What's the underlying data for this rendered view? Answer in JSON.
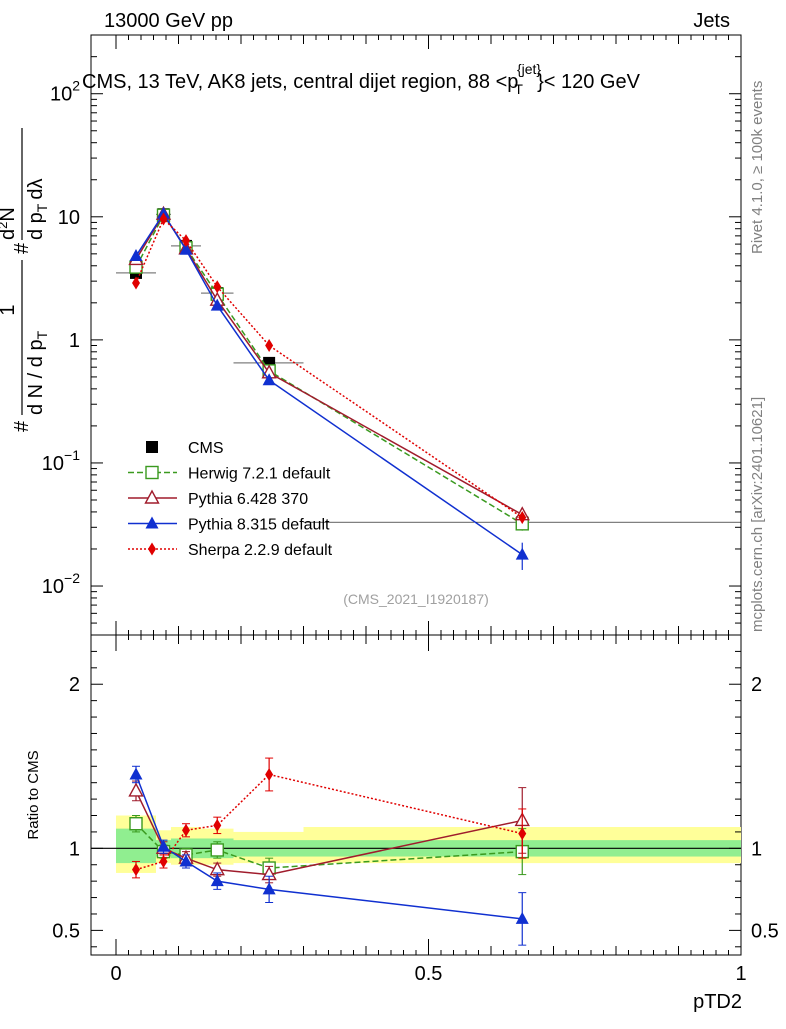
{
  "header": {
    "energy_label": "13000 GeV pp",
    "category_label": "Jets"
  },
  "side_labels": {
    "rivet": "Rivet 4.1.0, ≥ 100k events",
    "source": "mcplots.cern.ch [arXiv:2401.10621]"
  },
  "chart_data": [
    {
      "type": "line",
      "panel": "main",
      "title": "CMS, 13 TeV, AK8 jets, central dijet region, 88 <p",
      "title_super": "{jet}",
      "title_sub": "T",
      "title_end": "}< 120 GeV",
      "watermark": "(CMS_2021_I1920187)",
      "yscale": "log",
      "ylim": [
        0.004,
        300
      ],
      "xlim": [
        -0.04,
        1.0
      ],
      "ylabel_parts": [
        "1",
        "d N / d p",
        "T",
        "#",
        "d",
        "2",
        "N",
        "d p",
        "T",
        "dλ",
        "#"
      ],
      "y_ticks": [
        {
          "value": 0.01,
          "label": "10",
          "exp": "−2"
        },
        {
          "value": 0.1,
          "label": "10",
          "exp": "−1"
        },
        {
          "value": 1,
          "label": "1",
          "exp": ""
        },
        {
          "value": 10,
          "label": "10",
          "exp": ""
        },
        {
          "value": 100,
          "label": "10",
          "exp": "2"
        }
      ],
      "x": [
        0.032,
        0.076,
        0.112,
        0.162,
        0.245,
        0.65
      ],
      "series": [
        {
          "name": "CMS",
          "color": "#000000",
          "marker": "square",
          "dash": "none",
          "values": [
            3.5,
            10.5,
            5.8,
            2.4,
            0.65,
            0.033
          ],
          "bins": [
            [
              0.0,
              0.064
            ],
            [
              0.064,
              0.088
            ],
            [
              0.088,
              0.136
            ],
            [
              0.136,
              0.188
            ],
            [
              0.188,
              0.3
            ],
            [
              0.3,
              1.0
            ]
          ]
        },
        {
          "name": "Herwig 7.2.1 default",
          "color": "#3a9a1f",
          "marker": "open-square",
          "dash": "6,3",
          "values": [
            3.9,
            10.3,
            5.6,
            2.35,
            0.56,
            0.032
          ],
          "err": [
            0.06,
            0.05,
            0.05,
            0.05,
            0.06,
            0.12
          ]
        },
        {
          "name": "Pythia 6.428 370",
          "color": "#a01c2c",
          "marker": "open-triangle",
          "dash": "none",
          "values": [
            4.5,
            10.5,
            5.5,
            2.1,
            0.54,
            0.038
          ],
          "err": [
            0.05,
            0.04,
            0.04,
            0.04,
            0.05,
            0.12
          ]
        },
        {
          "name": "Pythia 8.315 default",
          "color": "#1030d0",
          "marker": "triangle",
          "dash": "none",
          "values": [
            4.8,
            10.6,
            5.4,
            1.9,
            0.47,
            0.018
          ],
          "err": [
            0.05,
            0.04,
            0.04,
            0.05,
            0.06,
            0.25
          ]
        },
        {
          "name": "Sherpa 2.2.9 default",
          "color": "#e00000",
          "marker": "diamond",
          "dash": "2,2",
          "values": [
            2.9,
            9.6,
            6.4,
            2.7,
            0.9,
            0.036
          ],
          "err": [
            0.05,
            0.04,
            0.04,
            0.04,
            0.05,
            0.1
          ]
        }
      ]
    },
    {
      "type": "line",
      "panel": "ratio",
      "ylabel": "Ratio to CMS",
      "xlabel": "pTD2",
      "xlim": [
        -0.04,
        1.0
      ],
      "ylim": [
        0.35,
        2.3
      ],
      "y_ticks": [
        {
          "value": 0.5,
          "label": "0.5"
        },
        {
          "value": 1,
          "label": "1"
        },
        {
          "value": 2,
          "label": "2"
        }
      ],
      "x_ticks": [
        {
          "value": 0,
          "label": "0"
        },
        {
          "value": 0.5,
          "label": "0.5"
        },
        {
          "value": 1,
          "label": "1"
        }
      ],
      "bands": {
        "stat": [
          [
            0.0,
            0.064,
            0.91,
            1.12
          ],
          [
            0.064,
            0.088,
            0.95,
            1.05
          ],
          [
            0.088,
            0.136,
            0.94,
            1.06
          ],
          [
            0.136,
            0.188,
            0.94,
            1.06
          ],
          [
            0.188,
            0.3,
            0.95,
            1.05
          ],
          [
            0.3,
            1.0,
            0.95,
            1.05
          ]
        ],
        "total": [
          [
            0.0,
            0.064,
            0.85,
            1.2
          ],
          [
            0.064,
            0.088,
            0.91,
            1.11
          ],
          [
            0.088,
            0.136,
            0.9,
            1.13
          ],
          [
            0.136,
            0.188,
            0.9,
            1.12
          ],
          [
            0.188,
            0.3,
            0.91,
            1.1
          ],
          [
            0.3,
            1.0,
            0.91,
            1.13
          ]
        ],
        "stat_color": "#90ee90",
        "total_color": "#ffff99"
      },
      "series": [
        {
          "name": "Herwig 7.2.1 default",
          "values": [
            1.15,
            0.98,
            0.96,
            0.99,
            0.88,
            0.98
          ],
          "err": [
            0.05,
            0.04,
            0.04,
            0.05,
            0.06,
            0.14
          ]
        },
        {
          "name": "Pythia 6.428 370",
          "values": [
            1.35,
            1.0,
            0.94,
            0.87,
            0.84,
            1.17
          ],
          "err": [
            0.06,
            0.04,
            0.04,
            0.04,
            0.05,
            0.2
          ]
        },
        {
          "name": "Pythia 8.315 default",
          "values": [
            1.45,
            1.01,
            0.92,
            0.8,
            0.75,
            0.57
          ],
          "err": [
            0.05,
            0.04,
            0.04,
            0.05,
            0.08,
            0.16
          ]
        },
        {
          "name": "Sherpa 2.2.9 default",
          "values": [
            0.87,
            0.92,
            1.11,
            1.14,
            1.45,
            1.09
          ],
          "err": [
            0.05,
            0.04,
            0.04,
            0.05,
            0.1,
            0.15
          ]
        }
      ]
    }
  ]
}
